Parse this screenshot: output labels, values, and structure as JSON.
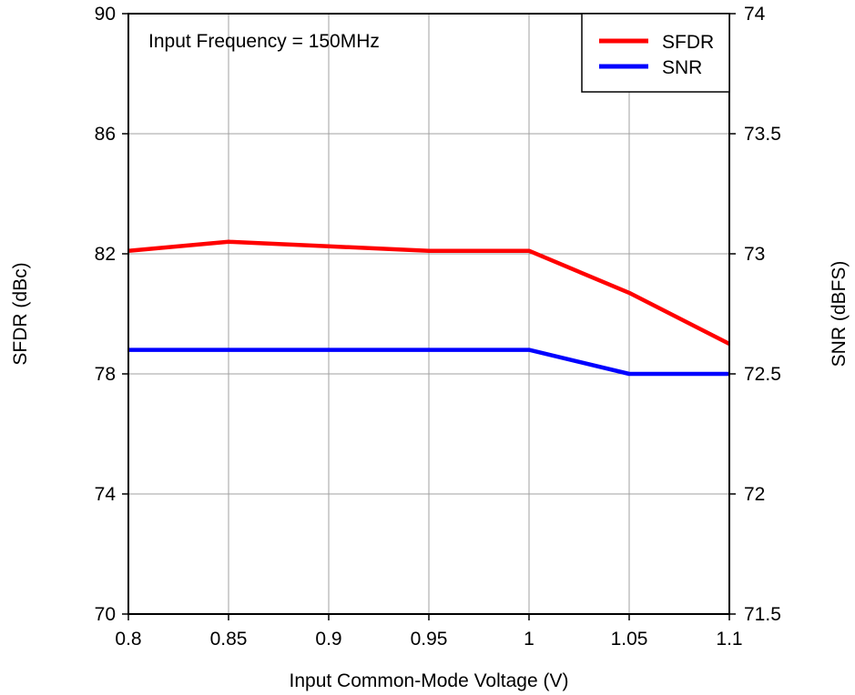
{
  "chart_data": {
    "type": "line",
    "annotation": "Input Frequency = 150MHz",
    "xlabel": "Input Common-Mode Voltage (V)",
    "ylabel_left": "SFDR (dBc)",
    "ylabel_right": "SNR (dBFS)",
    "xlim": [
      0.8,
      1.1
    ],
    "ylim_left": [
      70,
      90
    ],
    "ylim_right": [
      71.5,
      74
    ],
    "x_ticks": [
      "0.8",
      "0.85",
      "0.9",
      "0.95",
      "1",
      "1.05",
      "1.1"
    ],
    "y_left_ticks": [
      "70",
      "74",
      "78",
      "82",
      "86",
      "90"
    ],
    "y_right_ticks": [
      "71.5",
      "72",
      "72.5",
      "73",
      "73.5",
      "74"
    ],
    "grid": true,
    "legend_position": "top-right",
    "series": [
      {
        "name": "SFDR",
        "axis": "left",
        "color": "#ff0000",
        "x": [
          0.8,
          0.85,
          0.9,
          0.95,
          1.0,
          1.05,
          1.1
        ],
        "values": [
          82.1,
          82.4,
          82.25,
          82.1,
          82.1,
          80.7,
          79.0
        ]
      },
      {
        "name": "SNR",
        "axis": "right",
        "color": "#0000ff",
        "x": [
          0.8,
          0.85,
          0.9,
          0.95,
          1.0,
          1.05,
          1.1
        ],
        "values": [
          72.6,
          72.6,
          72.6,
          72.6,
          72.6,
          72.5,
          72.5
        ]
      }
    ]
  }
}
